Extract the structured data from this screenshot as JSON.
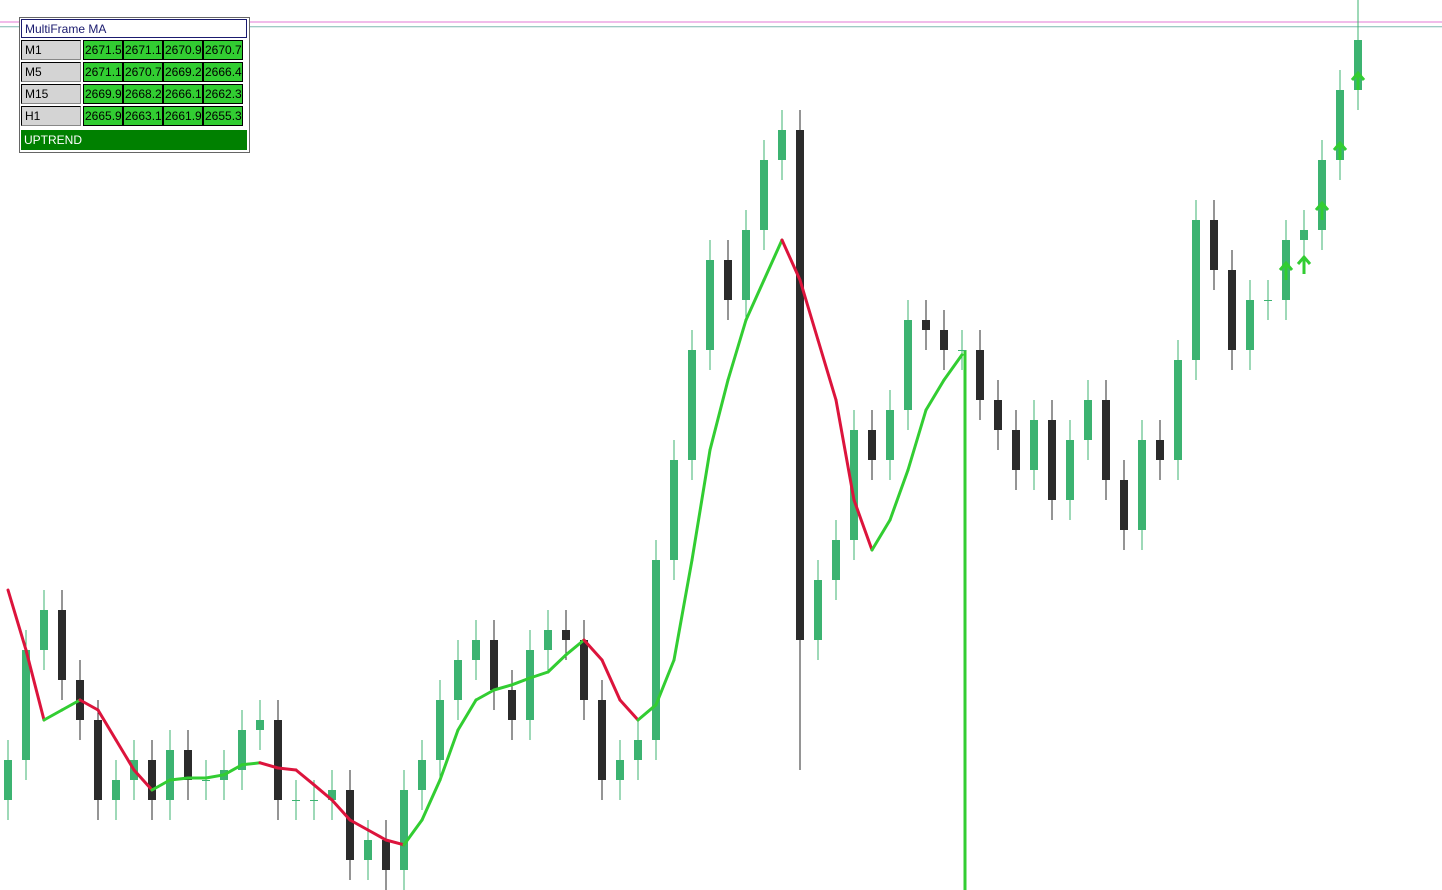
{
  "chart_data": {
    "type": "candlestick",
    "ylim": [
      2652.75,
      2675
    ],
    "up_color": "#3cb371",
    "down_color": "#2b2b2b",
    "open": [
      2655,
      2656,
      2658.75,
      2659.75,
      2658,
      2657,
      2655,
      2655.5,
      2656,
      2655,
      2656.25,
      2655.5,
      2655.5,
      2655.75,
      2656.75,
      2657,
      2655,
      2655,
      2655,
      2655.25,
      2653.5,
      2654,
      2653.25,
      2655.25,
      2656,
      2657.5,
      2658.5,
      2659,
      2657.75,
      2657,
      2658.75,
      2659.25,
      2659,
      2657.5,
      2655.5,
      2656,
      2656.5,
      2661,
      2663.5,
      2666.25,
      2668.5,
      2667.5,
      2669.25,
      2671,
      2671.75,
      2659,
      2660.5,
      2661.5,
      2664.25,
      2663.5,
      2664.75,
      2667,
      2666.75,
      2666.25,
      2666.25,
      2665,
      2664.25,
      2663.25,
      2664.5,
      2662.5,
      2664,
      2665,
      2663,
      2661.75,
      2664,
      2663.5,
      2666,
      2669.5,
      2668.25,
      2666.25,
      2667.5,
      2667.5,
      2669,
      2669.25,
      2671,
      2672.75
    ],
    "high": [
      2656.5,
      2659.25,
      2660.25,
      2660.25,
      2658.5,
      2657.5,
      2656,
      2656.5,
      2656.5,
      2656.75,
      2656.75,
      2656,
      2656.25,
      2657.25,
      2657.5,
      2657.5,
      2655.5,
      2655.5,
      2655.75,
      2655.75,
      2654.5,
      2654.5,
      2655.75,
      2656.5,
      2658,
      2659,
      2659.5,
      2659.5,
      2658.25,
      2659.25,
      2659.75,
      2659.75,
      2659.5,
      2658,
      2656.5,
      2657,
      2661.5,
      2664,
      2666.75,
      2669,
      2669,
      2669.75,
      2671.5,
      2672.25,
      2672.25,
      2661,
      2662,
      2664.75,
      2664.75,
      2665.25,
      2667.5,
      2667.5,
      2667.25,
      2666.75,
      2666.75,
      2665.5,
      2664.75,
      2665,
      2665,
      2664.5,
      2665.5,
      2665.5,
      2663.5,
      2664.5,
      2664.5,
      2666.5,
      2670,
      2670,
      2668.75,
      2668,
      2668,
      2669.5,
      2669.75,
      2671.5,
      2673.25,
      2675
    ],
    "low": [
      2654.5,
      2655.5,
      2658.25,
      2657.5,
      2656.5,
      2654.5,
      2654.5,
      2655,
      2654.5,
      2654.5,
      2655,
      2655,
      2655,
      2655.25,
      2656.25,
      2654.5,
      2654.5,
      2654.5,
      2654.5,
      2653,
      2653,
      2652.75,
      2652.75,
      2654.75,
      2655.5,
      2657,
      2658,
      2657.25,
      2656.5,
      2656.5,
      2658.25,
      2658.5,
      2657,
      2655,
      2655,
      2655.5,
      2656,
      2660.5,
      2663,
      2665.75,
      2667,
      2667,
      2668.75,
      2670.5,
      2655.75,
      2658.5,
      2660,
      2661,
      2663,
      2663,
      2664.25,
      2666.25,
      2665.75,
      2665.75,
      2664.5,
      2663.75,
      2662.75,
      2662.75,
      2662,
      2662,
      2663.5,
      2662.5,
      2661.25,
      2661.25,
      2663,
      2663,
      2665.5,
      2667.75,
      2665.75,
      2665.75,
      2667,
      2667,
      2668.5,
      2668.75,
      2670.5,
      2672.25
    ],
    "close": [
      2656,
      2658.75,
      2659.75,
      2658,
      2657,
      2655,
      2655.5,
      2656,
      2655,
      2656.25,
      2655.5,
      2655.5,
      2655.75,
      2656.75,
      2657,
      2655,
      2655,
      2655,
      2655.25,
      2653.5,
      2654,
      2653.25,
      2655.25,
      2656,
      2657.5,
      2658.5,
      2659,
      2657.75,
      2657,
      2658.75,
      2659.25,
      2659,
      2657.5,
      2655.5,
      2656,
      2656.5,
      2661,
      2663.5,
      2666.25,
      2668.5,
      2667.5,
      2669.25,
      2671,
      2671.75,
      2659,
      2660.5,
      2661.5,
      2664.25,
      2663.5,
      2664.75,
      2667,
      2666.75,
      2666.25,
      2666.25,
      2665,
      2664.25,
      2663.25,
      2664.5,
      2662.5,
      2664,
      2665,
      2663,
      2661.75,
      2664,
      2663.5,
      2666,
      2669.5,
      2668.25,
      2666.25,
      2667.5,
      2667.5,
      2669,
      2669.25,
      2671,
      2672.75,
      2674
    ],
    "ma": {
      "up_color": "#32cd32",
      "down_color": "#dc143c",
      "values": [
        2660.25,
        2658.75,
        2657,
        2657.25,
        2657.5,
        2657.25,
        2656.5,
        2655.75,
        2655.25,
        2655.5,
        2655.55,
        2655.55,
        2655.63,
        2655.88,
        2655.93,
        2655.8,
        2655.75,
        2655.38,
        2655,
        2654.5,
        2654.25,
        2654,
        2653.88,
        2654.5,
        2655.5,
        2656.75,
        2657.5,
        2657.75,
        2657.88,
        2658.05,
        2658.2,
        2658.63,
        2659,
        2658.5,
        2657.5,
        2657,
        2657.38,
        2658.5,
        2661,
        2663.75,
        2665.5,
        2667,
        2668,
        2669,
        2668,
        2666.5,
        2665,
        2662.5,
        2661.25,
        2662,
        2663.25,
        2664.75,
        2665.5,
        2666.13,
        null,
        null,
        null,
        null,
        null,
        null,
        null,
        null,
        null,
        null,
        null,
        null,
        null,
        null,
        null,
        null,
        null,
        null,
        null,
        null,
        null,
        null
      ]
    },
    "arrows": {
      "color": "#32cd32",
      "values": [
        null,
        null,
        null,
        null,
        null,
        null,
        null,
        null,
        null,
        null,
        null,
        null,
        null,
        null,
        null,
        null,
        null,
        null,
        null,
        null,
        null,
        null,
        null,
        null,
        null,
        null,
        null,
        null,
        null,
        null,
        null,
        null,
        null,
        null,
        null,
        null,
        null,
        null,
        null,
        null,
        null,
        null,
        null,
        null,
        null,
        null,
        null,
        null,
        null,
        null,
        null,
        null,
        null,
        null,
        null,
        null,
        null,
        null,
        null,
        null,
        null,
        null,
        null,
        null,
        null,
        null,
        null,
        null,
        null,
        null,
        null,
        2668.25,
        2668.4,
        2669.75,
        2671.25,
        2673
      ]
    },
    "price_lines": [
      {
        "value": 2674.45,
        "color": "#e37ad6"
      },
      {
        "value": 2674.33,
        "color": "#7fb8b0"
      }
    ]
  },
  "panel": {
    "title": "MultiFrame MA",
    "rows": [
      {
        "label": "M1",
        "values": [
          2671.5,
          2671.1,
          2670.9,
          2670.7
        ]
      },
      {
        "label": "M5",
        "values": [
          2671.1,
          2670.7,
          2669.2,
          2666.4
        ]
      },
      {
        "label": "M15",
        "values": [
          2669.9,
          2668.2,
          2666.1,
          2662.3
        ]
      },
      {
        "label": "H1",
        "values": [
          2665.9,
          2663.1,
          2661.9,
          2655.3
        ]
      }
    ],
    "status": "UPTREND"
  }
}
